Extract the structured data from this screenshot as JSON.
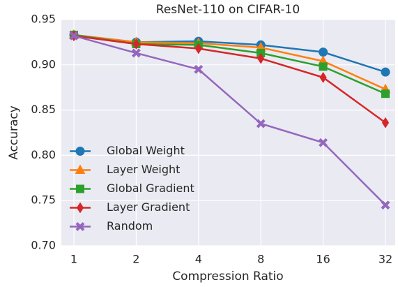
{
  "chart_data": {
    "type": "line",
    "title": "ResNet-110 on CIFAR-10",
    "x_label": "Compression Ratio",
    "y_label": "Accuracy",
    "categories": [
      "1",
      "2",
      "4",
      "8",
      "16",
      "32"
    ],
    "series": [
      {
        "name": "Global Weight",
        "color": "#1f77b4",
        "marker": "circle",
        "values": [
          0.933,
          0.925,
          0.926,
          0.922,
          0.914,
          0.892
        ]
      },
      {
        "name": "Layer Weight",
        "color": "#ff7f0e",
        "marker": "triangle",
        "values": [
          0.933,
          0.925,
          0.924,
          0.919,
          0.904,
          0.873
        ]
      },
      {
        "name": "Global Gradient",
        "color": "#2ca02c",
        "marker": "square",
        "values": [
          0.933,
          0.923,
          0.922,
          0.913,
          0.898,
          0.868
        ]
      },
      {
        "name": "Layer Gradient",
        "color": "#d62728",
        "marker": "thin-diamond",
        "values": [
          0.932,
          0.923,
          0.918,
          0.907,
          0.886,
          0.836
        ]
      },
      {
        "name": "Random",
        "color": "#9467bd",
        "marker": "x",
        "values": [
          0.932,
          0.913,
          0.895,
          0.835,
          0.814,
          0.745
        ]
      }
    ],
    "ylim": [
      0.7,
      0.95
    ],
    "yticks": [
      {
        "value": 0.7,
        "label": "0.70"
      },
      0.75,
      {
        "value": 0.8,
        "label": "0.80"
      },
      0.85,
      {
        "value": 0.9,
        "label": "0.90"
      },
      0.95
    ],
    "grid": true,
    "legend": "lower left"
  }
}
